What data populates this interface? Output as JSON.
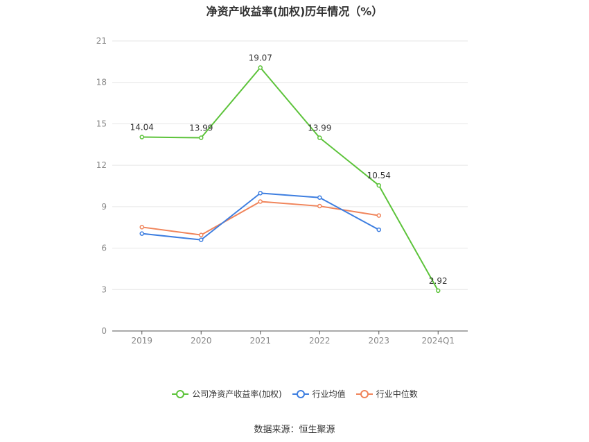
{
  "title": "净资产收益率(加权)历年情况（%）",
  "source": "数据来源：恒生聚源",
  "chart_data": {
    "type": "line",
    "categories": [
      "2019",
      "2020",
      "2021",
      "2022",
      "2023",
      "2024Q1"
    ],
    "ylim": [
      0,
      21
    ],
    "yticks": [
      0,
      3,
      6,
      9,
      12,
      15,
      18,
      21
    ],
    "grid": true,
    "legend_position": "bottom",
    "series": [
      {
        "name": "公司净资产收益率(加权)",
        "color": "#5cc33a",
        "values": [
          14.04,
          13.99,
          19.07,
          13.99,
          10.54,
          2.92
        ],
        "labels": [
          "14.04",
          "13.99",
          "19.07",
          "13.99",
          "10.54",
          "2.92"
        ]
      },
      {
        "name": "行业均值",
        "color": "#3d7ee0",
        "values": [
          7.05,
          6.6,
          9.98,
          9.66,
          7.33,
          null
        ]
      },
      {
        "name": "行业中位数",
        "color": "#f0845a",
        "values": [
          7.52,
          6.95,
          9.37,
          9.04,
          8.36,
          null
        ]
      }
    ]
  }
}
